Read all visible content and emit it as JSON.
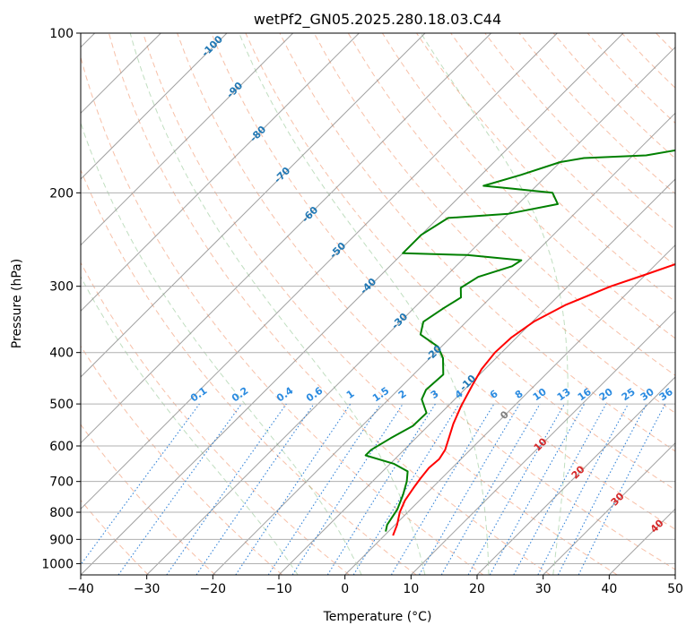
{
  "chart_data": {
    "type": "line",
    "diagram": "skew-T log-P",
    "title": "wetPf2_GN05.2025.280.18.03.C44",
    "xlabel": "Temperature (°C)",
    "ylabel": "Pressure (hPa)",
    "xlim": [
      -40,
      50
    ],
    "ylim_hpa": [
      1050,
      100
    ],
    "y_scale": "log",
    "x_ticks": [
      "−40",
      "−30",
      "−20",
      "−10",
      "0",
      "10",
      "20",
      "30",
      "40",
      "50"
    ],
    "x_tick_values": [
      -40,
      -30,
      -20,
      -10,
      0,
      10,
      20,
      30,
      40,
      50
    ],
    "y_ticks": [
      "100",
      "200",
      "300",
      "400",
      "500",
      "600",
      "700",
      "800",
      "900",
      "1000"
    ],
    "y_tick_values": [
      100,
      200,
      300,
      400,
      500,
      600,
      700,
      800,
      900,
      1000
    ],
    "grid": true,
    "series": [
      {
        "role": "temperature",
        "color": "#ff0000",
        "points": [
          [
            1.3,
            885
          ],
          [
            0.3,
            845
          ],
          [
            -1.2,
            800
          ],
          [
            -2.2,
            760
          ],
          [
            -2.8,
            720
          ],
          [
            -3.2,
            690
          ],
          [
            -3.5,
            660
          ],
          [
            -3.3,
            635
          ],
          [
            -3.8,
            610
          ],
          [
            -5.0,
            580
          ],
          [
            -6.5,
            545
          ],
          [
            -8.0,
            505
          ],
          [
            -9.5,
            460
          ],
          [
            -10.5,
            430
          ],
          [
            -11.0,
            400
          ],
          [
            -10.8,
            375
          ],
          [
            -9.8,
            350
          ],
          [
            -7.5,
            325
          ],
          [
            -3.5,
            300
          ],
          [
            0.0,
            285
          ],
          [
            3.5,
            270
          ],
          [
            6.2,
            258
          ],
          [
            9.0,
            244
          ],
          [
            10.4,
            230
          ],
          [
            11.8,
            215
          ],
          [
            14.5,
            198
          ],
          [
            17.0,
            184
          ],
          [
            18.3,
            170
          ],
          [
            18.6,
            155
          ],
          [
            19.4,
            141
          ],
          [
            20.7,
            128
          ],
          [
            21.6,
            116
          ],
          [
            23.8,
            105
          ],
          [
            25.1,
            100
          ]
        ]
      },
      {
        "role": "dewpoint",
        "color": "#008000",
        "points": [
          [
            -0.4,
            870
          ],
          [
            -1.2,
            845
          ],
          [
            -2.0,
            790
          ],
          [
            -3.4,
            740
          ],
          [
            -4.8,
            700
          ],
          [
            -6.2,
            670
          ],
          [
            -9.5,
            648
          ],
          [
            -15.0,
            625
          ],
          [
            -15.0,
            610
          ],
          [
            -13.8,
            580
          ],
          [
            -12.3,
            550
          ],
          [
            -12.2,
            520
          ],
          [
            -15.0,
            490
          ],
          [
            -15.8,
            470
          ],
          [
            -15.5,
            440
          ],
          [
            -18.0,
            410
          ],
          [
            -20.5,
            390
          ],
          [
            -25.0,
            370
          ],
          [
            -26.5,
            350
          ],
          [
            -25.5,
            330
          ],
          [
            -24.5,
            315
          ],
          [
            -26.0,
            302
          ],
          [
            -25.0,
            288
          ],
          [
            -21.5,
            275
          ],
          [
            -21.0,
            268
          ],
          [
            -30.0,
            262
          ],
          [
            -40.0,
            260
          ],
          [
            -40.0,
            240
          ],
          [
            -38.5,
            223
          ],
          [
            -30.0,
            219
          ],
          [
            -24.0,
            210
          ],
          [
            -26.5,
            200
          ],
          [
            -34.0,
            196
          ],
          [
            -38.0,
            194
          ],
          [
            -34.0,
            185
          ],
          [
            -30.0,
            175
          ],
          [
            -27.0,
            172
          ],
          [
            -18.0,
            170
          ],
          [
            -13.0,
            165
          ],
          [
            -10.5,
            158
          ],
          [
            -10.0,
            148
          ],
          [
            -9.8,
            140
          ],
          [
            -8.2,
            133
          ],
          [
            -5.9,
            124
          ],
          [
            -4.6,
            117
          ],
          [
            -3.0,
            108
          ],
          [
            -2.2,
            100
          ]
        ]
      }
    ],
    "reference_lines": {
      "dry_adiabats_theta_k": [
        230,
        240,
        250,
        260,
        270,
        280,
        290,
        300,
        310,
        320,
        330,
        340,
        350,
        360,
        370,
        380,
        390,
        400,
        410,
        420,
        430,
        440,
        450,
        460,
        470,
        480
      ],
      "moist_adiabats": [
        -10,
        0,
        10,
        20,
        30
      ],
      "mixing_ratio_gkg": [
        0.1,
        0.2,
        0.4,
        0.6,
        1,
        1.5,
        2,
        3,
        4,
        6,
        8,
        10,
        13,
        16,
        20,
        25,
        30,
        36
      ]
    },
    "annotations": {
      "skew_isotherm_labels": [
        "-100",
        "-90",
        "-80",
        "-70",
        "-60",
        "-50",
        "-40",
        "-30",
        "-20",
        "-10"
      ],
      "mixing_ratio_labels": [
        "0.1",
        "0.2",
        "0.4",
        "0.6",
        "1",
        "1.5",
        "2",
        "3",
        "4",
        "6",
        "8",
        "10",
        "13",
        "16",
        "20",
        "25",
        "30",
        "36"
      ],
      "isotherm_labels_lower": [
        "0",
        "10",
        "20",
        "30",
        "40"
      ]
    }
  }
}
